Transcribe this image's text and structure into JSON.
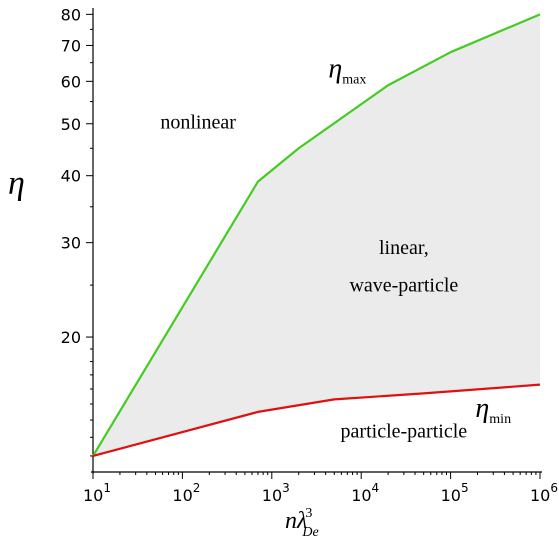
{
  "chart_data": {
    "type": "line",
    "xlabel": "nλ",
    "xlabel_sup": "3",
    "xlabel_sub": "De",
    "ylabel": "η",
    "x_scale": "log",
    "y_scale": "log",
    "xlim": [
      10,
      1000000
    ],
    "ylim": [
      11.2,
      84
    ],
    "x_ticks": [
      {
        "value": 10,
        "base": "10",
        "exp": "1"
      },
      {
        "value": 100,
        "base": "10",
        "exp": "2"
      },
      {
        "value": 1000,
        "base": "10",
        "exp": "3"
      },
      {
        "value": 10000,
        "base": "10",
        "exp": "4"
      },
      {
        "value": 100000,
        "base": "10",
        "exp": "5"
      },
      {
        "value": 1000000,
        "base": "10",
        "exp": "6"
      }
    ],
    "y_ticks": [
      {
        "value": 20,
        "label": "20"
      },
      {
        "value": 30,
        "label": "30"
      },
      {
        "value": 40,
        "label": "40"
      },
      {
        "value": 50,
        "label": "50"
      },
      {
        "value": 60,
        "label": "60"
      },
      {
        "value": 70,
        "label": "70"
      },
      {
        "value": 80,
        "label": "80"
      }
    ],
    "y_minor_ticks": [
      12,
      13,
      14,
      15,
      16,
      17,
      18,
      19,
      25,
      35,
      45,
      55,
      65,
      75,
      85
    ],
    "series": [
      {
        "name": "η",
        "name_sub": "max",
        "color": "#44cc22",
        "points": [
          [
            10,
            12
          ],
          [
            700,
            39
          ],
          [
            2000,
            45
          ],
          [
            20000,
            59
          ],
          [
            100000,
            68
          ],
          [
            1000000,
            80
          ]
        ]
      },
      {
        "name": "η",
        "name_sub": "min",
        "color": "#e01010",
        "points": [
          [
            10,
            12
          ],
          [
            700,
            14.5
          ],
          [
            5000,
            15.3
          ],
          [
            50000,
            15.7
          ],
          [
            1000000,
            16.3
          ]
        ]
      }
    ],
    "fill_between": {
      "color": "#ebebeb"
    },
    "annotations": [
      {
        "text": "nonlinear",
        "x": 150,
        "y": 49
      },
      {
        "text": "linear,",
        "x": 30000,
        "y": 28.6
      },
      {
        "text": "wave-particle",
        "x": 30000,
        "y": 24.3
      },
      {
        "text": "particle-particle",
        "x": 30000,
        "y": 13.0
      }
    ],
    "series_labels": [
      {
        "text": "η",
        "sub": "max",
        "x": 7000,
        "y": 61
      },
      {
        "text": "η",
        "sub": "min",
        "x": 300000,
        "y": 14.2
      }
    ]
  }
}
